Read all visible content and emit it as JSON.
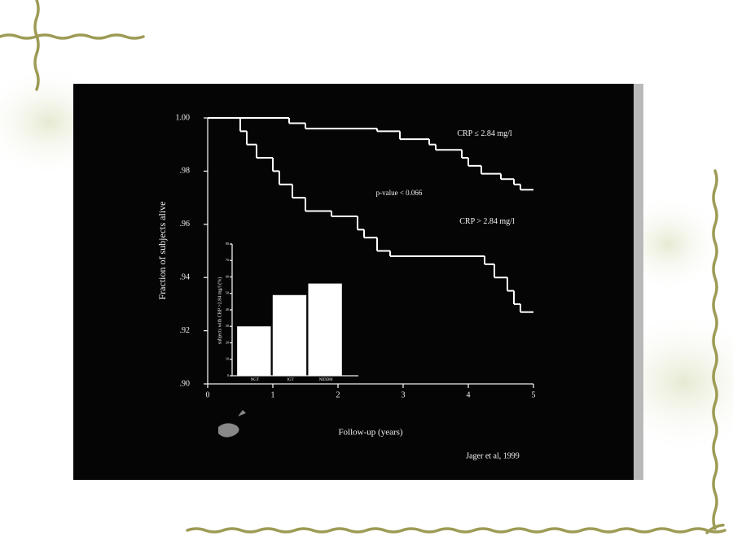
{
  "chart_data": [
    {
      "type": "line",
      "drawstyle": "steps-post",
      "y_label": "Fraction of subjects alive",
      "x_label": "Follow-up (years)",
      "annotation": "p-value < 0.066",
      "source": "Jager et al, 1999",
      "xlim": [
        0,
        5
      ],
      "xticks": [
        0,
        1,
        2,
        3,
        4,
        5
      ],
      "ylim": [
        0.9,
        1.0
      ],
      "yticks": [
        {
          "value": 0.9,
          "label": ".90"
        },
        {
          "value": 0.92,
          "label": ".92"
        },
        {
          "value": 0.94,
          "label": ".94"
        },
        {
          "value": 0.96,
          "label": ".96"
        },
        {
          "value": 0.98,
          "label": ".98"
        },
        {
          "value": 1.0,
          "label": "1.00"
        }
      ],
      "series": [
        {
          "name": "CRP ≤ 2.84 mg/l",
          "color": "#ffffff",
          "x": [
            0,
            1.25,
            1.5,
            2.6,
            2.95,
            3.4,
            3.5,
            3.9,
            4.0,
            4.2,
            4.5,
            4.7,
            4.8,
            5.0
          ],
          "values": [
            1.0,
            0.998,
            0.996,
            0.995,
            0.992,
            0.99,
            0.988,
            0.985,
            0.982,
            0.979,
            0.977,
            0.975,
            0.973,
            0.973
          ]
        },
        {
          "name": "CRP > 2.84 mg/l",
          "color": "#ffffff",
          "x": [
            0,
            0.5,
            0.6,
            0.75,
            1.0,
            1.1,
            1.3,
            1.5,
            1.9,
            2.3,
            2.4,
            2.6,
            2.8,
            4.25,
            4.4,
            4.6,
            4.7,
            4.8,
            5.0
          ],
          "values": [
            1.0,
            0.995,
            0.99,
            0.985,
            0.98,
            0.975,
            0.97,
            0.965,
            0.963,
            0.958,
            0.955,
            0.95,
            0.948,
            0.945,
            0.94,
            0.935,
            0.93,
            0.927,
            0.927
          ]
        }
      ]
    },
    {
      "type": "bar",
      "y_label": "subjects with CRP >2.84 mg/l (%)",
      "categories": [
        "NGT",
        "IGT",
        "NIDDM"
      ],
      "values": [
        30,
        49,
        56
      ],
      "color": "#ffffff",
      "ylim": [
        0,
        80
      ],
      "yticks": [
        0,
        10,
        20,
        30,
        40,
        50,
        60,
        70,
        80
      ]
    }
  ]
}
